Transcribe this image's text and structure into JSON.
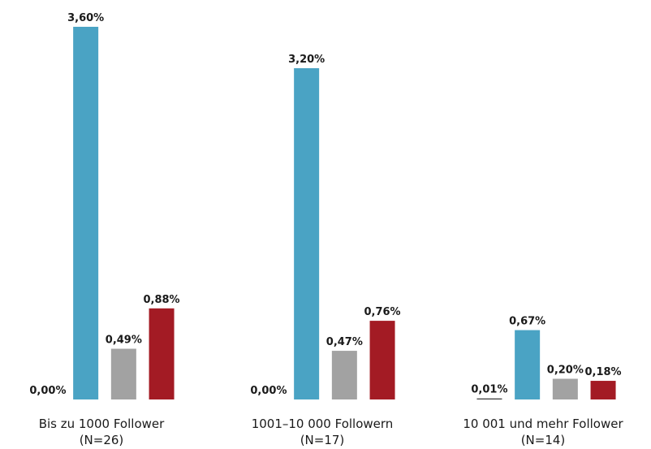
{
  "chart_data": {
    "type": "bar",
    "categories": [
      [
        "Bis zu 1000 Follower",
        "(N=26)"
      ],
      [
        "1001–10 000 Followern",
        "(N=17)"
      ],
      [
        "10 001 und mehr Follower",
        "(N=14)"
      ]
    ],
    "series": [
      {
        "color": "#3d3d3d",
        "values": [
          0.0,
          0.0,
          0.01
        ],
        "value_labels": [
          "0,00%",
          "0,00%",
          "0,01%"
        ]
      },
      {
        "color": "#4aa3c4",
        "values": [
          3.6,
          3.2,
          0.67
        ],
        "value_labels": [
          "3,60%",
          "3,20%",
          "0,67%"
        ]
      },
      {
        "color": "#a2a2a2",
        "values": [
          0.49,
          0.47,
          0.2
        ],
        "value_labels": [
          "0,49%",
          "0,47%",
          "0,20%"
        ]
      },
      {
        "color": "#a31b24",
        "values": [
          0.88,
          0.76,
          0.18
        ],
        "value_labels": [
          "0,88%",
          "0,76%",
          "0,18%"
        ]
      }
    ],
    "ylim": [
      0,
      3.6
    ]
  }
}
